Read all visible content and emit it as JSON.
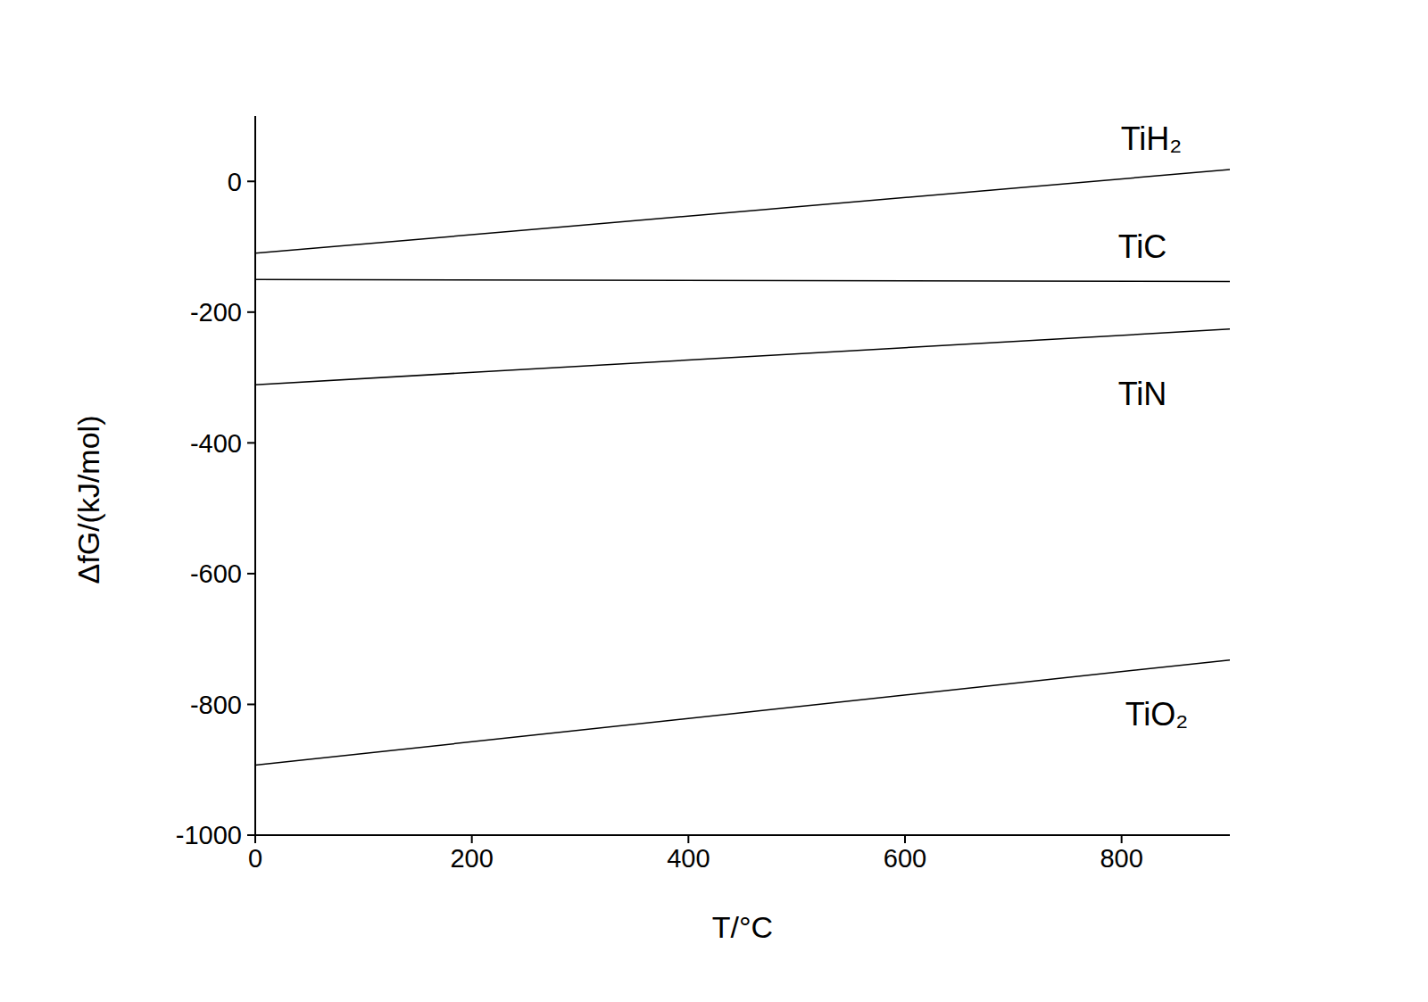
{
  "chart_data": {
    "type": "line",
    "x_label": "T/°C",
    "y_label": "ΔfG/(kJ/mol)",
    "x": [
      0,
      900
    ],
    "xlim": [
      0,
      900
    ],
    "xticks": [
      0,
      200,
      400,
      600,
      800
    ],
    "ylim": [
      -1000,
      100
    ],
    "yticks": [
      -1000,
      -800,
      -600,
      -400,
      -200,
      0
    ],
    "grid": false,
    "series": [
      {
        "name": "TiH₂",
        "color": "#000000",
        "values": [
          -110,
          18
        ]
      },
      {
        "name": "TiC",
        "color": "#000000",
        "values": [
          -150,
          -153
        ]
      },
      {
        "name": "TiN",
        "color": "#000000",
        "values": [
          -311,
          -226
        ]
      },
      {
        "name": "TiO₂",
        "color": "#000000",
        "values": [
          -893,
          -732
        ]
      }
    ]
  }
}
